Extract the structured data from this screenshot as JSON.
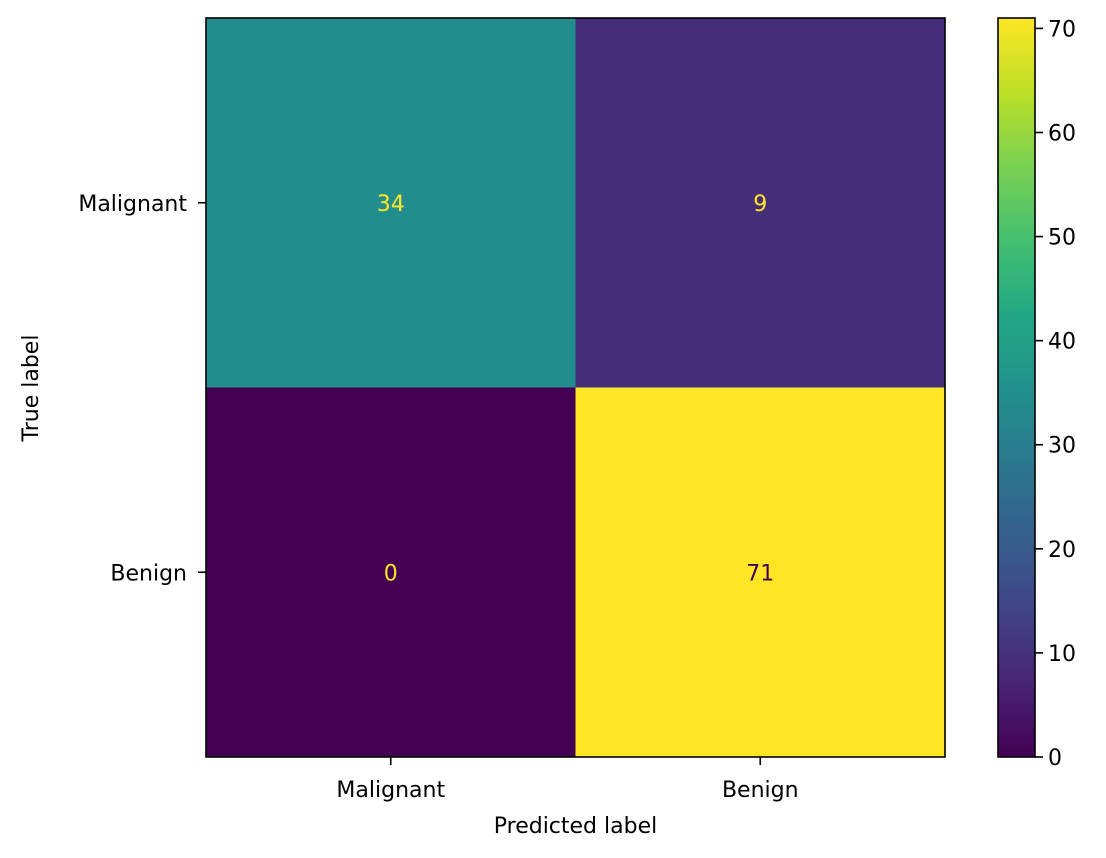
{
  "chart_data": {
    "type": "heatmap",
    "title": "",
    "xlabel": "Predicted label",
    "ylabel": "True label",
    "x_categories": [
      "Malignant",
      "Benign"
    ],
    "y_categories": [
      "Malignant",
      "Benign"
    ],
    "matrix": [
      [
        34,
        9
      ],
      [
        0,
        71
      ]
    ],
    "cell_labels": [
      [
        "34",
        "9"
      ],
      [
        "0",
        "71"
      ]
    ],
    "colorbar": {
      "range": [
        0,
        71
      ],
      "ticks": [
        0,
        10,
        20,
        30,
        40,
        50,
        60,
        70
      ],
      "tick_labels": [
        "0",
        "10",
        "20",
        "30",
        "40",
        "50",
        "60",
        "70"
      ]
    },
    "colormap": "viridis",
    "colors": {
      "viridis_low": "#440154",
      "viridis_high": "#fde725"
    }
  }
}
